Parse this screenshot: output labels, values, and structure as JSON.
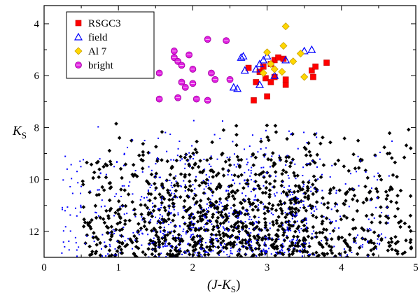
{
  "chart_data": {
    "type": "scatter",
    "title": "",
    "xlabel": "(J-K",
    "xlabel_sub": "S",
    "xlabel_close": ")",
    "ylabel": "K",
    "ylabel_sub": "S",
    "xlim": [
      0,
      5
    ],
    "ylim": [
      13,
      3.3
    ],
    "y_inverted": true,
    "x_ticks": [
      "0",
      "1",
      "2",
      "3",
      "4",
      "5"
    ],
    "y_ticks": [
      "4",
      "6",
      "8",
      "10",
      "12"
    ],
    "grid": false,
    "legend_position": "top-left",
    "legend": [
      {
        "label": "RSGC3",
        "marker": "square",
        "color": "#ff0000"
      },
      {
        "label": "field",
        "marker": "triangle",
        "color": "#0000ff"
      },
      {
        "label": "Al 7",
        "marker": "diamond",
        "color": "#ffd700"
      },
      {
        "label": "bright",
        "marker": "circle",
        "color": "#e020e0"
      }
    ],
    "series": [
      {
        "name": "RSGC3",
        "marker": "square",
        "color": "#ff0000",
        "points": [
          [
            2.75,
            5.7
          ],
          [
            2.9,
            5.85
          ],
          [
            2.98,
            6.1
          ],
          [
            3.05,
            6.25
          ],
          [
            3.1,
            5.4
          ],
          [
            3.15,
            5.3
          ],
          [
            3.22,
            5.35
          ],
          [
            3.25,
            6.35
          ],
          [
            3.25,
            6.15
          ],
          [
            3.1,
            6.05
          ],
          [
            2.85,
            6.25
          ],
          [
            2.82,
            6.95
          ],
          [
            3.0,
            6.8
          ],
          [
            3.6,
            5.8
          ],
          [
            3.65,
            5.65
          ],
          [
            3.62,
            6.05
          ],
          [
            3.8,
            5.5
          ],
          [
            2.95,
            5.65
          ],
          [
            3.05,
            5.55
          ]
        ]
      },
      {
        "name": "field",
        "marker": "triangle",
        "color": "#0000ff",
        "points": [
          [
            2.65,
            5.3
          ],
          [
            2.7,
            5.8
          ],
          [
            2.85,
            5.75
          ],
          [
            2.9,
            5.55
          ],
          [
            2.95,
            5.4
          ],
          [
            3.0,
            5.25
          ],
          [
            3.1,
            6.0
          ],
          [
            3.25,
            5.4
          ],
          [
            2.55,
            6.45
          ],
          [
            2.6,
            6.5
          ],
          [
            3.5,
            5.05
          ],
          [
            3.6,
            5.0
          ],
          [
            2.9,
            6.35
          ],
          [
            2.68,
            5.25
          ]
        ]
      },
      {
        "name": "Al 7",
        "marker": "diamond",
        "color": "#ffd700",
        "points": [
          [
            3.25,
            4.1
          ],
          [
            3.22,
            4.85
          ],
          [
            3.45,
            5.15
          ],
          [
            3.0,
            5.1
          ],
          [
            3.05,
            5.55
          ],
          [
            3.1,
            5.75
          ],
          [
            3.2,
            5.85
          ],
          [
            2.95,
            5.9
          ],
          [
            3.5,
            6.05
          ],
          [
            3.35,
            5.45
          ]
        ]
      },
      {
        "name": "bright",
        "marker": "circle",
        "color": "#e020e0",
        "points": [
          [
            1.75,
            5.05
          ],
          [
            1.75,
            5.3
          ],
          [
            1.8,
            5.45
          ],
          [
            1.85,
            5.6
          ],
          [
            1.95,
            5.2
          ],
          [
            2.0,
            5.75
          ],
          [
            1.55,
            5.9
          ],
          [
            1.85,
            6.25
          ],
          [
            1.9,
            6.45
          ],
          [
            2.2,
            4.6
          ],
          [
            2.25,
            5.9
          ],
          [
            2.3,
            6.15
          ],
          [
            2.45,
            4.65
          ],
          [
            2.5,
            6.15
          ],
          [
            1.8,
            6.85
          ],
          [
            1.55,
            6.9
          ],
          [
            2.05,
            6.9
          ],
          [
            2.2,
            6.95
          ],
          [
            2.0,
            6.3
          ]
        ]
      },
      {
        "name": "",
        "marker": "diamond-small",
        "color": "#000000",
        "generated_count": 1100,
        "x_range": [
          0.5,
          4.95
        ],
        "y_range": [
          7.7,
          13.0
        ],
        "note_shape": "dense lower cloud"
      },
      {
        "name": "",
        "marker": "dot",
        "color": "#0000ff",
        "generated_count": 750,
        "x_range": [
          0.2,
          4.7
        ],
        "y_range": [
          7.5,
          13.0
        ],
        "note_shape": "dense lower cloud"
      }
    ]
  }
}
